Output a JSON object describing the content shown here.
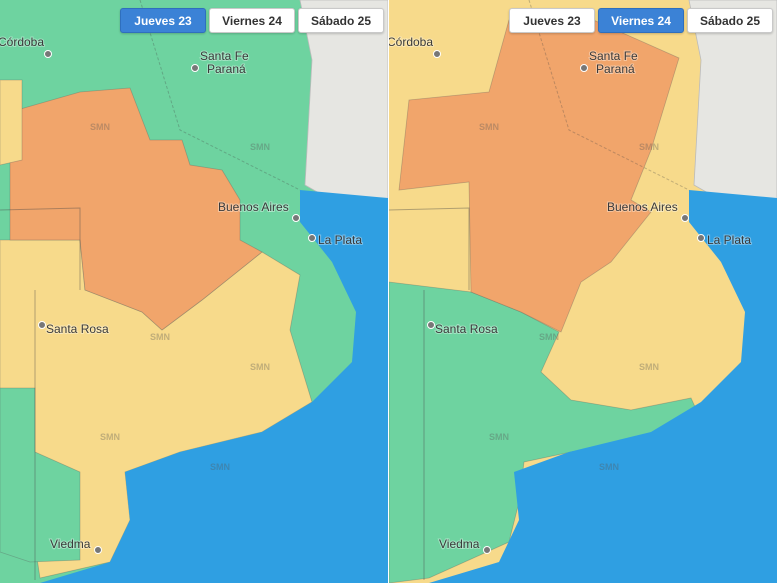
{
  "panels": [
    {
      "tabs": [
        "Jueves 23",
        "Viernes 24",
        "Sábado 25"
      ],
      "active_tab": 0,
      "cities": [
        "Córdoba",
        "Santa Fe",
        "Paraná",
        "Buenos Aires",
        "La Plata",
        "Santa Rosa",
        "Viedma"
      ],
      "watermark": "SMN"
    },
    {
      "tabs": [
        "Jueves 23",
        "Viernes 24",
        "Sábado 25"
      ],
      "active_tab": 1,
      "cities": [
        "Córdoba",
        "Santa Fe",
        "Paraná",
        "Buenos Aires",
        "La Plata",
        "Santa Rosa",
        "Viedma"
      ],
      "watermark": "SMN"
    }
  ]
}
